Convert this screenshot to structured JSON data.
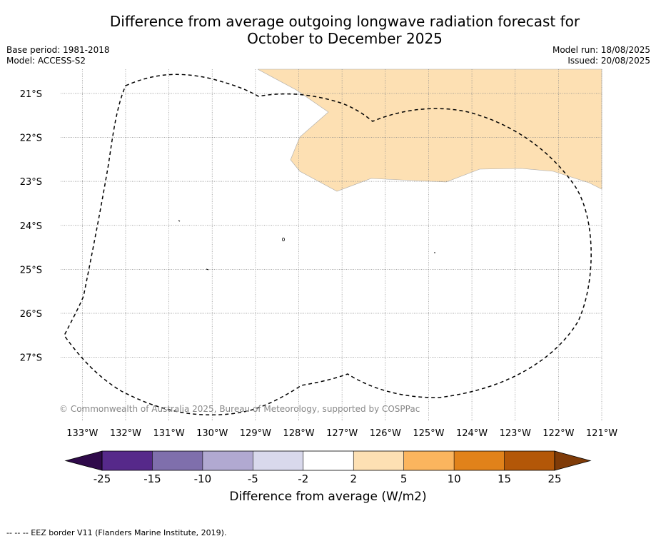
{
  "title_line1": "Difference from average outgoing longwave radiation forecast for",
  "title_line2": "October to December 2025",
  "base_period": "Base period: 1981-2018",
  "model": "Model: ACCESS-S2",
  "model_run": "Model run: 18/08/2025",
  "issued": "Issued: 20/08/2025",
  "copyright": "© Commonwealth of Australia 2025, Bureau of Meteorology, supported by COSPPac",
  "footnote": "--  --  -- EEZ border V11 (Flanders Marine Institute, 2019).",
  "map": {
    "lon_ticks": [
      "133°W",
      "132°W",
      "131°W",
      "130°W",
      "129°W",
      "128°W",
      "127°W",
      "126°W",
      "125°W",
      "124°W",
      "123°W",
      "122°W",
      "121°W"
    ],
    "lat_ticks": [
      "21°S",
      "22°S",
      "23°S",
      "24°S",
      "25°S",
      "26°S",
      "27°S"
    ],
    "lon_range": [
      -133.5,
      -121.0
    ],
    "lat_range": [
      -28.45,
      -20.45
    ],
    "grid": true,
    "shaded_category": "2 to 5"
  },
  "colorbar": {
    "label": "Difference from average (W/m2)",
    "ticks": [
      "-25",
      "-15",
      "-10",
      "-5",
      "-2",
      "2",
      "5",
      "10",
      "15",
      "25"
    ],
    "colors": [
      "#56298a",
      "#7f6fac",
      "#b1a9d1",
      "#d9d9ec",
      "#ffffff",
      "#fde0b3",
      "#fbb55e",
      "#e1821a",
      "#b35708"
    ],
    "under_color": "#2f0a4a",
    "over_color": "#7f3b08"
  }
}
